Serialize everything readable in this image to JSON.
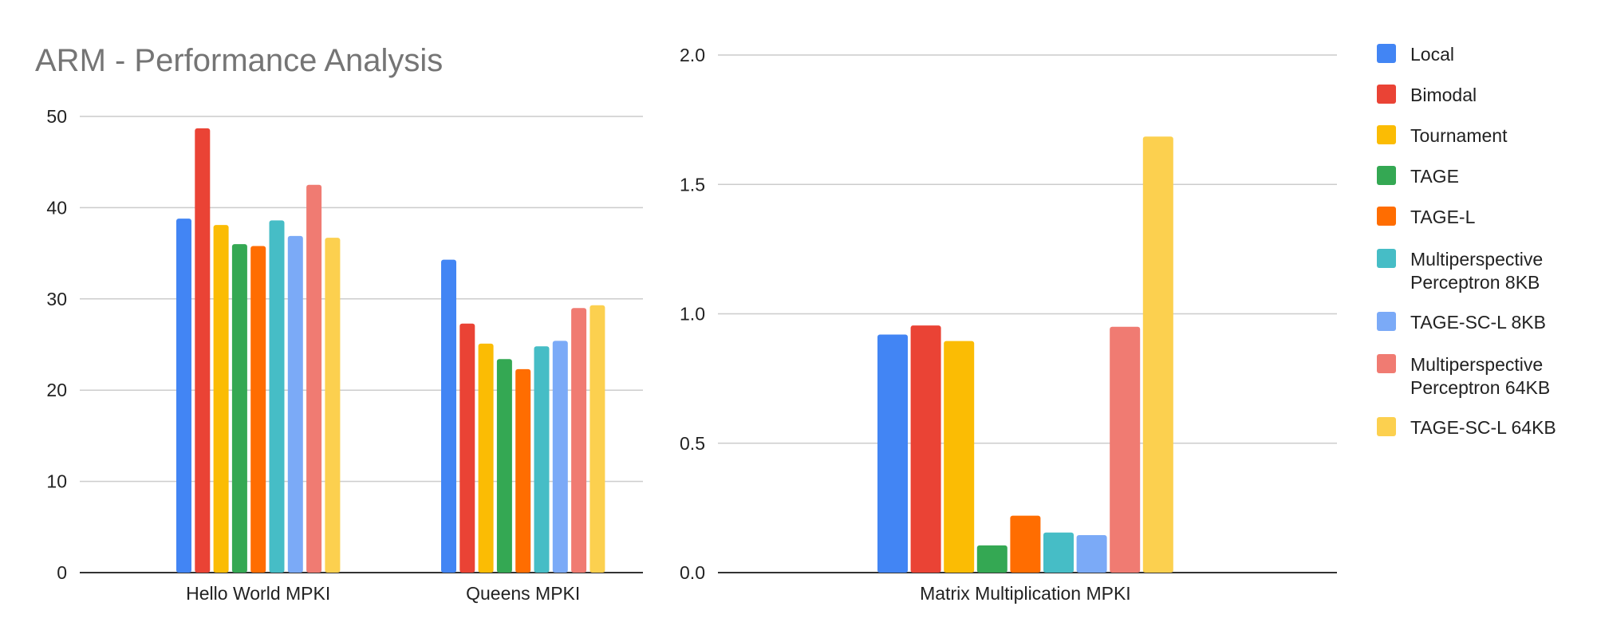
{
  "title": "ARM - Performance Analysis",
  "colors": {
    "grid": "#cccccc",
    "axis": "#333333",
    "tick_text": "#222222"
  },
  "legend": {
    "position": "right",
    "items": [
      {
        "label": "Local",
        "color": "#4285F4"
      },
      {
        "label": "Bimodal",
        "color": "#EA4335"
      },
      {
        "label": "Tournament",
        "color": "#FBBC04"
      },
      {
        "label": "TAGE",
        "color": "#34A853"
      },
      {
        "label": "TAGE-L",
        "color": "#FF6D01"
      },
      {
        "label": "Multiperspective Perceptron 8KB",
        "color": "#46BDC6"
      },
      {
        "label": "TAGE-SC-L 8KB",
        "color": "#7BAAF7"
      },
      {
        "label": "Multiperspective Perceptron 64KB",
        "color": "#F07B72"
      },
      {
        "label": "TAGE-SC-L 64KB",
        "color": "#FCD04F"
      }
    ]
  },
  "chart_data": [
    {
      "type": "bar",
      "title": "ARM - Performance Analysis",
      "categories": [
        "Hello World MPKI",
        "Queens MPKI"
      ],
      "series": [
        {
          "name": "Local",
          "values": [
            38.8,
            34.3
          ]
        },
        {
          "name": "Bimodal",
          "values": [
            48.7,
            27.3
          ]
        },
        {
          "name": "Tournament",
          "values": [
            38.1,
            25.1
          ]
        },
        {
          "name": "TAGE",
          "values": [
            36.0,
            23.4
          ]
        },
        {
          "name": "TAGE-L",
          "values": [
            35.8,
            22.3
          ]
        },
        {
          "name": "Multiperspective Perceptron 8KB",
          "values": [
            38.6,
            24.8
          ]
        },
        {
          "name": "TAGE-SC-L 8KB",
          "values": [
            36.9,
            25.4
          ]
        },
        {
          "name": "Multiperspective Perceptron 64KB",
          "values": [
            42.5,
            29.0
          ]
        },
        {
          "name": "TAGE-SC-L 64KB",
          "values": [
            36.7,
            29.3
          ]
        }
      ],
      "xlabel": "",
      "ylabel": "",
      "ylim": [
        0,
        50
      ],
      "yticks": [
        0,
        10,
        20,
        30,
        40,
        50
      ],
      "ytick_labels": [
        "0",
        "10",
        "20",
        "30",
        "40",
        "50"
      ],
      "grid": true
    },
    {
      "type": "bar",
      "categories": [
        "Matrix Multiplication MPKI"
      ],
      "series": [
        {
          "name": "Local",
          "values": [
            0.92
          ]
        },
        {
          "name": "Bimodal",
          "values": [
            0.955
          ]
        },
        {
          "name": "Tournament",
          "values": [
            0.895
          ]
        },
        {
          "name": "TAGE",
          "values": [
            0.105
          ]
        },
        {
          "name": "TAGE-L",
          "values": [
            0.22
          ]
        },
        {
          "name": "Multiperspective Perceptron 8KB",
          "values": [
            0.155
          ]
        },
        {
          "name": "TAGE-SC-L 8KB",
          "values": [
            0.145
          ]
        },
        {
          "name": "Multiperspective Perceptron 64KB",
          "values": [
            0.95
          ]
        },
        {
          "name": "TAGE-SC-L 64KB",
          "values": [
            1.685
          ]
        }
      ],
      "xlabel": "",
      "ylabel": "",
      "ylim": [
        0,
        2.0
      ],
      "yticks": [
        0,
        0.5,
        1.0,
        1.5,
        2.0
      ],
      "ytick_labels": [
        "0.0",
        "0.5",
        "1.0",
        "1.5",
        "2.0"
      ],
      "grid": true
    }
  ]
}
